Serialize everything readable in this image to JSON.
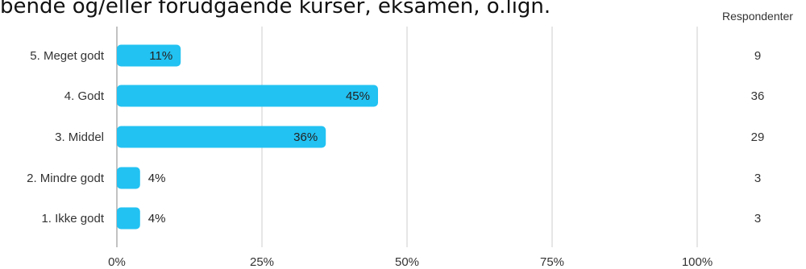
{
  "title": "bende og/eller forudgående kurser, eksamen, o.lign.",
  "respondents_header": "Respondenter",
  "colors": {
    "bar": "#22c2f2",
    "grid": "#cccccc",
    "axis": "#999999"
  },
  "chart_data": {
    "type": "bar",
    "orientation": "horizontal",
    "categories": [
      "5. Meget godt",
      "4. Godt",
      "3. Middel",
      "2. Mindre godt",
      "1. Ikke godt"
    ],
    "values": [
      11,
      45,
      36,
      4,
      4
    ],
    "value_labels": [
      "11%",
      "45%",
      "36%",
      "4%",
      "4%"
    ],
    "respondents": [
      9,
      36,
      29,
      3,
      3
    ],
    "xlim": [
      0,
      100
    ],
    "xticks": [
      0,
      25,
      50,
      75,
      100
    ],
    "xtick_labels": [
      "0%",
      "25%",
      "50%",
      "75%",
      "100%"
    ],
    "grid": true
  }
}
